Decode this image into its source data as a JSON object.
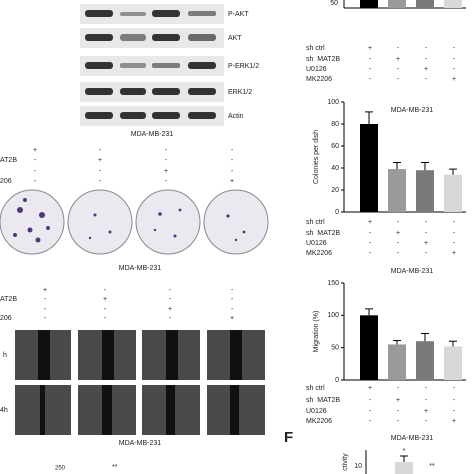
{
  "figure": {
    "blot": {
      "labels": [
        "P-AKT",
        "AKT",
        "P-ERK1/2",
        "ERK1/2",
        "Actin"
      ],
      "caption": "MDA-MB-231"
    },
    "colony": {
      "row_labels": [
        null,
        "AT2B",
        null,
        "206"
      ],
      "marks": [
        [
          "+",
          "-",
          "-",
          "-"
        ],
        [
          "-",
          "+",
          "-",
          "-"
        ],
        [
          "-",
          "-",
          "+",
          "-"
        ],
        [
          "-",
          "-",
          "-",
          "+"
        ]
      ],
      "caption": "MDA-MB-231"
    },
    "wound": {
      "row_labels": [
        null,
        "AT2B",
        null,
        "206"
      ],
      "marks": [
        [
          "+",
          "-",
          "-",
          "-"
        ],
        [
          "-",
          "+",
          "-",
          "-"
        ],
        [
          "-",
          "-",
          "+",
          "-"
        ],
        [
          "-",
          "-",
          "-",
          "+"
        ]
      ],
      "time_labels": [
        "h",
        "4h"
      ],
      "caption": "MDA-MB-231"
    },
    "bottom_left": {
      "tick": "250",
      "sig": "**"
    },
    "top_right": {
      "tick": "50",
      "conditions": [
        {
          "name": "sh ctrl",
          "marks": [
            "+",
            "-",
            "-",
            "-"
          ]
        },
        {
          "name": "sh  MAT2B",
          "marks": [
            "-",
            "+",
            "-",
            "-"
          ]
        },
        {
          "name": "U0126",
          "marks": [
            "-",
            "-",
            "+",
            "-"
          ]
        },
        {
          "name": "MK2206",
          "marks": [
            "-",
            "-",
            "-",
            "+"
          ]
        }
      ]
    },
    "panel_f": {
      "letter": "F",
      "title": "MDA-MB-231",
      "ylabel": "ctivity",
      "tick": "10",
      "sig": [
        "*",
        "**"
      ]
    }
  },
  "chart_data": [
    {
      "type": "bar",
      "title": "MDA-MB-231",
      "y_label": "Colonies per dish",
      "ylim": [
        0,
        100
      ],
      "yticks": [
        0,
        20,
        40,
        60,
        80,
        100
      ],
      "values": [
        80,
        39,
        38,
        34
      ],
      "errors": [
        11,
        6,
        7,
        5
      ],
      "colors": [
        "#000000",
        "#9a9a9a",
        "#7a7a7a",
        "#d8d8d8"
      ],
      "conditions": [
        {
          "name": "sh ctrl",
          "marks": [
            "+",
            "-",
            "-",
            "-"
          ]
        },
        {
          "name": "sh  MAT2B",
          "marks": [
            "-",
            "+",
            "-",
            "-"
          ]
        },
        {
          "name": "U0126",
          "marks": [
            "-",
            "-",
            "+",
            "-"
          ]
        },
        {
          "name": "MK2206",
          "marks": [
            "-",
            "-",
            "-",
            "+"
          ]
        }
      ]
    },
    {
      "type": "bar",
      "title": "MDA-MB-231",
      "y_label": "Migration (%)",
      "ylim": [
        0,
        150
      ],
      "yticks": [
        0,
        50,
        100,
        150
      ],
      "values": [
        100,
        55,
        60,
        52
      ],
      "errors": [
        10,
        6,
        12,
        8
      ],
      "colors": [
        "#000000",
        "#9a9a9a",
        "#7a7a7a",
        "#d8d8d8"
      ],
      "conditions": [
        {
          "name": "sh ctrl",
          "marks": [
            "+",
            "-",
            "-",
            "-"
          ]
        },
        {
          "name": "sh  MAT2B",
          "marks": [
            "-",
            "+",
            "-",
            "-"
          ]
        },
        {
          "name": "U0126",
          "marks": [
            "-",
            "-",
            "+",
            "-"
          ]
        },
        {
          "name": "MK2206",
          "marks": [
            "-",
            "-",
            "-",
            "+"
          ]
        }
      ]
    }
  ]
}
